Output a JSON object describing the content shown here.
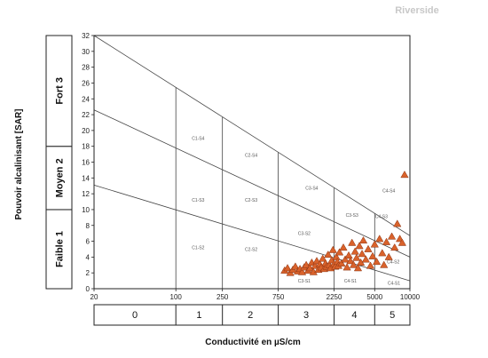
{
  "header": {
    "label": "Riverside"
  },
  "chart_data": {
    "type": "scatter",
    "title": "",
    "xlabel": "Conductivité en µS/cm",
    "ylabel": "Pouvoir alcalinisant [SAR]",
    "x_scale": "log",
    "xlim": [
      20,
      10000
    ],
    "ylim": [
      0,
      32
    ],
    "x_tick_labels": [
      "20",
      "100",
      "250",
      "750",
      "2250",
      "5000",
      "10000"
    ],
    "y_tick_labels": [
      "0",
      "2",
      "4",
      "6",
      "8",
      "10",
      "12",
      "14",
      "16",
      "18",
      "20",
      "22",
      "24",
      "26",
      "28",
      "30",
      "32"
    ],
    "y_ticks": [
      0,
      2,
      4,
      6,
      8,
      10,
      12,
      14,
      16,
      18,
      20,
      22,
      24,
      26,
      28,
      30,
      32
    ],
    "x_class_dividers": [
      100,
      250,
      750,
      2250,
      5000
    ],
    "salinity_classes": [
      "0",
      "1",
      "2",
      "3",
      "4",
      "5"
    ],
    "alkalinity_bands": [
      {
        "label": "Faible 1",
        "from": 0,
        "to": 10
      },
      {
        "label": "Moyen 2",
        "from": 10,
        "to": 18
      },
      {
        "label": "Fort 3",
        "from": 18,
        "to": 32
      }
    ],
    "boundary_lines": [
      {
        "from": [
          20,
          13.1
        ],
        "to": [
          10000,
          1.0
        ]
      },
      {
        "from": [
          20,
          22.6
        ],
        "to": [
          10000,
          4.0
        ]
      },
      {
        "from": [
          20,
          32.0
        ],
        "to": [
          10000,
          6.7
        ]
      }
    ],
    "region_labels": [
      {
        "text": "C1-S4",
        "x": 155,
        "y": 18.8
      },
      {
        "text": "C2-S4",
        "x": 440,
        "y": 16.7
      },
      {
        "text": "C3-S4",
        "x": 1450,
        "y": 12.5
      },
      {
        "text": "C4-S4",
        "x": 6600,
        "y": 12.2
      },
      {
        "text": "C1-S3",
        "x": 155,
        "y": 11.0
      },
      {
        "text": "C2-S3",
        "x": 440,
        "y": 11.0
      },
      {
        "text": "C3-S3",
        "x": 3200,
        "y": 9.1
      },
      {
        "text": "C4-S3",
        "x": 5700,
        "y": 8.9
      },
      {
        "text": "C1-S2",
        "x": 155,
        "y": 5.0
      },
      {
        "text": "C2-S2",
        "x": 440,
        "y": 4.8
      },
      {
        "text": "C3-S2",
        "x": 1250,
        "y": 6.8
      },
      {
        "text": "C4-S2",
        "x": 7200,
        "y": 3.2
      },
      {
        "text": "C3-S1",
        "x": 1250,
        "y": 0.8
      },
      {
        "text": "C4-S1",
        "x": 3100,
        "y": 0.8
      },
      {
        "text": "C4-S1",
        "x": 7300,
        "y": 0.5
      }
    ],
    "series": [
      {
        "marker": "triangle",
        "color": "#d9622b",
        "points": [
          [
            850,
            2.3
          ],
          [
            900,
            2.6
          ],
          [
            950,
            2.0
          ],
          [
            1000,
            2.4
          ],
          [
            1050,
            2.8
          ],
          [
            1100,
            2.2
          ],
          [
            1150,
            2.5
          ],
          [
            1200,
            2.1
          ],
          [
            1250,
            2.7
          ],
          [
            1300,
            3.0
          ],
          [
            1350,
            2.3
          ],
          [
            1400,
            2.6
          ],
          [
            1450,
            3.3
          ],
          [
            1500,
            2.1
          ],
          [
            1550,
            2.9
          ],
          [
            1600,
            3.5
          ],
          [
            1650,
            2.4
          ],
          [
            1700,
            3.1
          ],
          [
            1750,
            2.7
          ],
          [
            1800,
            3.8
          ],
          [
            1850,
            2.5
          ],
          [
            1900,
            3.2
          ],
          [
            1950,
            2.8
          ],
          [
            2000,
            4.3
          ],
          [
            2050,
            3.0
          ],
          [
            2100,
            2.6
          ],
          [
            2150,
            3.6
          ],
          [
            2200,
            4.9
          ],
          [
            2250,
            3.1
          ],
          [
            2300,
            2.8
          ],
          [
            2350,
            4.0
          ],
          [
            2400,
            3.4
          ],
          [
            2450,
            2.9
          ],
          [
            2500,
            4.6
          ],
          [
            2600,
            3.2
          ],
          [
            2700,
            5.2
          ],
          [
            2800,
            3.7
          ],
          [
            2900,
            2.7
          ],
          [
            3000,
            4.2
          ],
          [
            3100,
            3.5
          ],
          [
            3200,
            5.8
          ],
          [
            3300,
            3.0
          ],
          [
            3400,
            4.7
          ],
          [
            3500,
            3.9
          ],
          [
            3600,
            2.6
          ],
          [
            3700,
            5.4
          ],
          [
            3800,
            3.3
          ],
          [
            3900,
            4.4
          ],
          [
            4000,
            6.1
          ],
          [
            4200,
            3.7
          ],
          [
            4400,
            5.0
          ],
          [
            4600,
            2.9
          ],
          [
            4800,
            4.1
          ],
          [
            5000,
            5.6
          ],
          [
            5200,
            3.4
          ],
          [
            5500,
            6.3
          ],
          [
            5800,
            4.5
          ],
          [
            6000,
            3.0
          ],
          [
            6300,
            5.9
          ],
          [
            6600,
            4.0
          ],
          [
            7000,
            6.6
          ],
          [
            7400,
            5.2
          ],
          [
            7800,
            8.2
          ],
          [
            8200,
            6.3
          ],
          [
            8600,
            5.8
          ],
          [
            9000,
            14.4
          ]
        ]
      }
    ]
  }
}
